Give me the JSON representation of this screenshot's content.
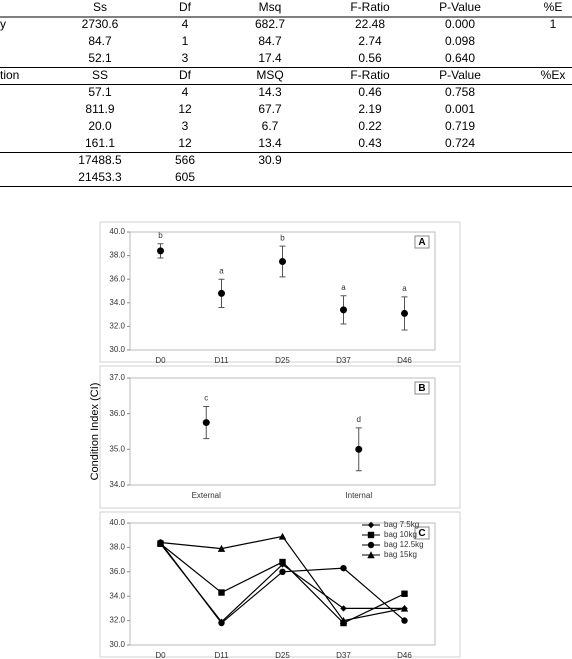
{
  "table": {
    "rows": [
      [
        "",
        "Ss",
        "Df",
        "Msq",
        "F-Ratio",
        "P-Value",
        "%E"
      ],
      [
        "y",
        "2730.6",
        "4",
        "682.7",
        "22.48",
        "0.000",
        "1"
      ],
      [
        null,
        "84.7",
        "1",
        "84.7",
        "2.74",
        "0.098",
        null
      ],
      [
        null,
        "52.1",
        "3",
        "17.4",
        "0.56",
        "0.640",
        null
      ],
      [
        "tion",
        "SS",
        "Df",
        "MSQ",
        "F-Ratio",
        "P-Value",
        "%Ex"
      ],
      [
        null,
        "57.1",
        "4",
        "14.3",
        "0.46",
        "0.758",
        null
      ],
      [
        null,
        "811.9",
        "12",
        "67.7",
        "2.19",
        "0.001",
        null
      ],
      [
        null,
        "20.0",
        "3",
        "6.7",
        "0.22",
        "0.719",
        null
      ],
      [
        null,
        "161.1",
        "12",
        "13.4",
        "0.43",
        "0.724",
        null
      ],
      [
        null,
        "17488.5",
        "566",
        "30.9",
        null,
        null,
        null
      ],
      [
        null,
        "21453.3",
        "605",
        null,
        null,
        null,
        null
      ]
    ]
  },
  "chart_data": [
    {
      "type": "errorbar",
      "panel": "A",
      "categories": [
        "D0",
        "D11",
        "D25",
        "D37",
        "D46"
      ],
      "values": [
        38.4,
        34.8,
        37.5,
        33.4,
        33.1
      ],
      "errors": [
        0.6,
        1.2,
        1.3,
        1.2,
        1.4
      ],
      "annotations": [
        "b",
        "a",
        "b",
        "a",
        "a"
      ],
      "color": "#000000",
      "ylim": [
        30,
        40
      ],
      "yticks": [
        {
          "value": 30,
          "label": "30.0"
        },
        {
          "value": 32,
          "label": "32.0"
        },
        {
          "value": 34,
          "label": "34.0"
        },
        {
          "value": 36,
          "label": "36.0"
        },
        {
          "value": 38,
          "label": "38.0"
        },
        {
          "value": 40,
          "label": "40.0"
        }
      ]
    },
    {
      "type": "errorbar",
      "panel": "B",
      "y_label": "Condition Index (CI)",
      "categories": [
        "External",
        "Internal"
      ],
      "values": [
        35.75,
        35.0
      ],
      "errors": [
        0.45,
        0.6
      ],
      "annotations": [
        "c",
        "d"
      ],
      "color": "#000000",
      "ylim": [
        34,
        37
      ],
      "yticks": [
        {
          "value": 34,
          "label": "34.0"
        },
        {
          "value": 35,
          "label": "35.0"
        },
        {
          "value": 36,
          "label": "36.0"
        },
        {
          "value": 37,
          "label": "37.0"
        }
      ]
    },
    {
      "type": "line",
      "panel": "C",
      "categories": [
        "D0",
        "D11",
        "D25",
        "D37",
        "D46"
      ],
      "series": [
        {
          "name": "bag 7.5kg",
          "marker": "diamond",
          "color": "#000000",
          "values": [
            38.3,
            31.9,
            36.6,
            33.0,
            33.0
          ]
        },
        {
          "name": "bag 10kg",
          "marker": "square",
          "color": "#000000",
          "values": [
            38.3,
            34.3,
            36.8,
            31.8,
            34.2
          ]
        },
        {
          "name": "bag 12.5kg",
          "marker": "circle",
          "color": "#000000",
          "values": [
            38.4,
            31.8,
            36.0,
            36.3,
            32.0
          ]
        },
        {
          "name": "bag 15kg",
          "marker": "triangle",
          "color": "#000000",
          "values": [
            38.4,
            37.9,
            38.9,
            32.0,
            33.0
          ]
        }
      ],
      "ylim": [
        30,
        40
      ],
      "yticks": [
        {
          "value": 30,
          "label": "30.0"
        },
        {
          "value": 32,
          "label": "32.0"
        },
        {
          "value": 34,
          "label": "34.0"
        },
        {
          "value": 36,
          "label": "36.0"
        },
        {
          "value": 38,
          "label": "38.0"
        },
        {
          "value": 40,
          "label": "40.0"
        }
      ]
    }
  ]
}
